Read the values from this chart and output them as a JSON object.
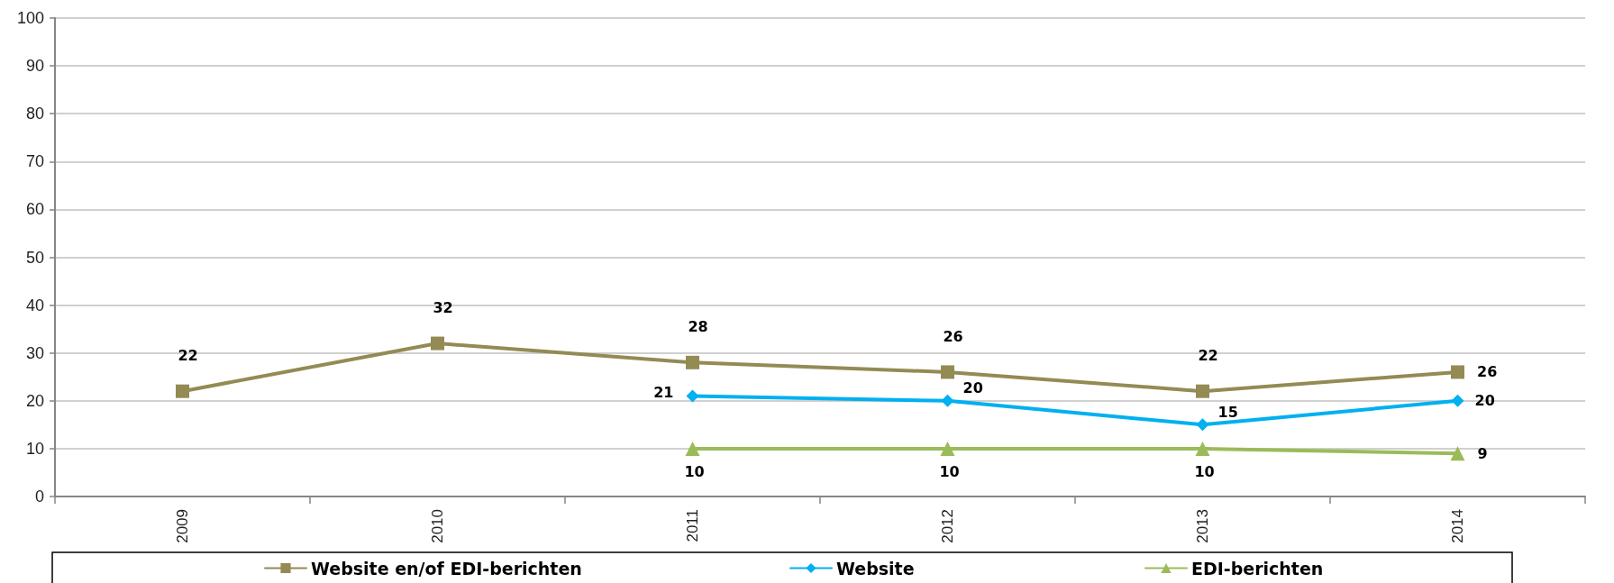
{
  "chart_data": {
    "type": "line",
    "categories": [
      "2009",
      "2010",
      "2011",
      "2012",
      "2013",
      "2014"
    ],
    "series": [
      {
        "name": "Website en/of EDI-berichten",
        "color": "#948a54",
        "marker": "square",
        "values": [
          22,
          32,
          28,
          26,
          22,
          26
        ]
      },
      {
        "name": "Website",
        "color": "#00b0f0",
        "marker": "diamond",
        "values": [
          null,
          null,
          21,
          20,
          15,
          20
        ]
      },
      {
        "name": "EDI-berichten",
        "color": "#9bbb59",
        "marker": "triangle",
        "values": [
          null,
          null,
          10,
          10,
          10,
          9
        ]
      }
    ],
    "ylim": [
      0,
      100
    ],
    "yticks": [
      0,
      10,
      20,
      30,
      40,
      50,
      60,
      70,
      80,
      90,
      100
    ],
    "grid": "y",
    "legend": "bottom",
    "data_labels": true,
    "line_style": "solid"
  }
}
